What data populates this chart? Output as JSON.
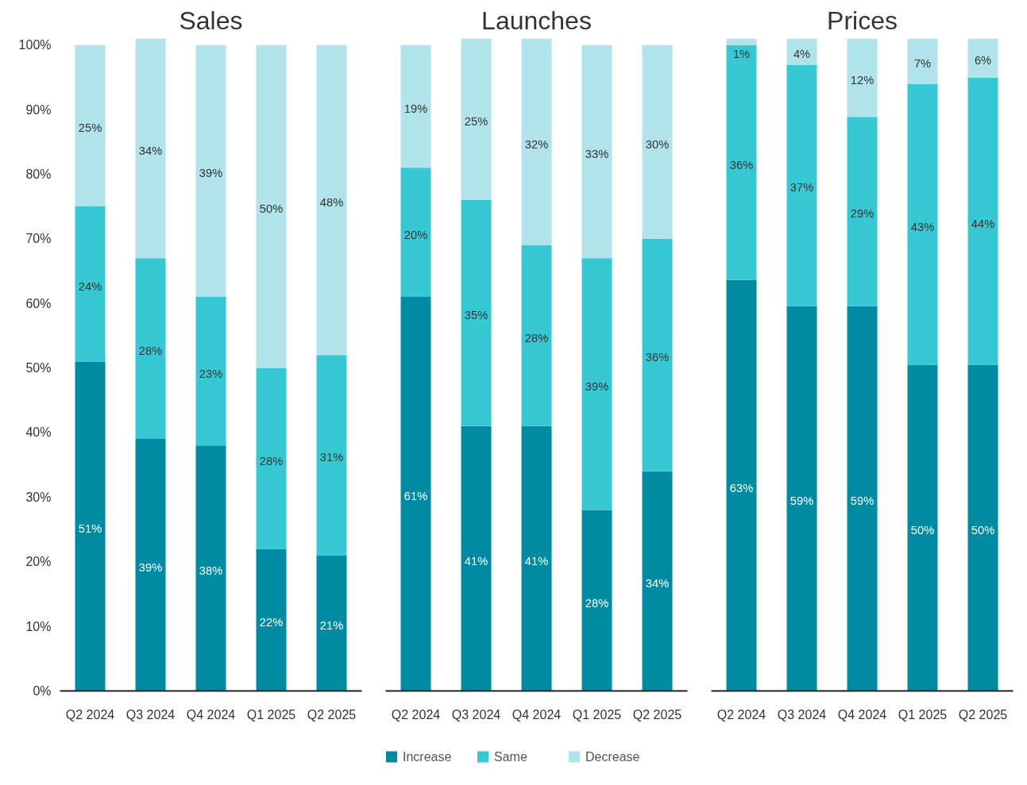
{
  "chart_data": [
    {
      "type": "bar",
      "title": "Sales",
      "stacked": true,
      "categories": [
        "Q2 2024",
        "Q3 2024",
        "Q4 2024",
        "Q1 2025",
        "Q2 2025"
      ],
      "ylim": [
        0,
        101
      ],
      "yticks": [
        {
          "value": 0,
          "label": "0%"
        },
        {
          "value": 10,
          "label": "10%"
        },
        {
          "value": 20,
          "label": "20%"
        },
        {
          "value": 30,
          "label": "30%"
        },
        {
          "value": 40,
          "label": "40%"
        },
        {
          "value": 50,
          "label": "50%"
        },
        {
          "value": 60,
          "label": "60%"
        },
        {
          "value": 70,
          "label": "70%"
        },
        {
          "value": 80,
          "label": "80%"
        },
        {
          "value": 90,
          "label": "90%"
        },
        {
          "value": 100,
          "label": "100%"
        }
      ],
      "grid": false,
      "data_labels": true,
      "series": [
        {
          "color": "#008ba3",
          "values": [
            51,
            39,
            38,
            22,
            21
          ],
          "value_labels": [
            "51%",
            "39%",
            "38%",
            "22%",
            "21%"
          ]
        },
        {
          "color": "#36c9d4",
          "values": [
            24,
            28,
            23,
            28,
            31
          ],
          "value_labels": [
            "24%",
            "28%",
            "23%",
            "28%",
            "31%"
          ]
        },
        {
          "color": "#b0e3ea",
          "values": [
            25,
            34,
            39,
            50,
            48
          ],
          "value_labels": [
            "25%",
            "34%",
            "39%",
            "50%",
            "48%"
          ]
        }
      ]
    },
    {
      "type": "bar",
      "title": "Launches",
      "stacked": true,
      "categories": [
        "Q2 2024",
        "Q3 2024",
        "Q4 2024",
        "Q1 2025",
        "Q2 2025"
      ],
      "ylim": [
        0,
        101
      ],
      "tick_labels": "x",
      "grid": false,
      "data_labels": true,
      "legend": "bottom",
      "series": [
        {
          "name": "Increase",
          "color": "#008ba3",
          "values": [
            61,
            41,
            41,
            28,
            34
          ],
          "value_labels": [
            "61%",
            "41%",
            "41%",
            "28%",
            "34%"
          ]
        },
        {
          "name": "Same",
          "color": "#36c9d4",
          "values": [
            20,
            35,
            28,
            39,
            36
          ],
          "value_labels": [
            "20%",
            "35%",
            "28%",
            "39%",
            "36%"
          ]
        },
        {
          "name": "Decrease",
          "color": "#b0e3ea",
          "values": [
            19,
            25,
            32,
            33,
            30
          ],
          "value_labels": [
            "19%",
            "25%",
            "32%",
            "33%",
            "30%"
          ]
        }
      ]
    },
    {
      "type": "bar",
      "title": "Prices",
      "stacked": true,
      "categories": [
        "Q2 2024",
        "Q3 2024",
        "Q4 2024",
        "Q1 2025",
        "Q2 2025"
      ],
      "ylim": [
        0,
        100
      ],
      "tick_labels": "x",
      "grid": false,
      "data_labels": true,
      "series": [
        {
          "color": "#008ba3",
          "values": [
            63,
            59,
            59,
            50,
            50
          ],
          "value_labels": [
            "63%",
            "59%",
            "59%",
            "50%",
            "50%"
          ]
        },
        {
          "color": "#36c9d4",
          "values": [
            36,
            37,
            29,
            43,
            44
          ],
          "value_labels": [
            "36%",
            "37%",
            "29%",
            "43%",
            "44%"
          ]
        },
        {
          "color": "#b0e3ea",
          "values": [
            1,
            4,
            12,
            7,
            6
          ],
          "value_labels": [
            "1%",
            "4%",
            "12%",
            "7%",
            "6%"
          ]
        }
      ]
    }
  ]
}
